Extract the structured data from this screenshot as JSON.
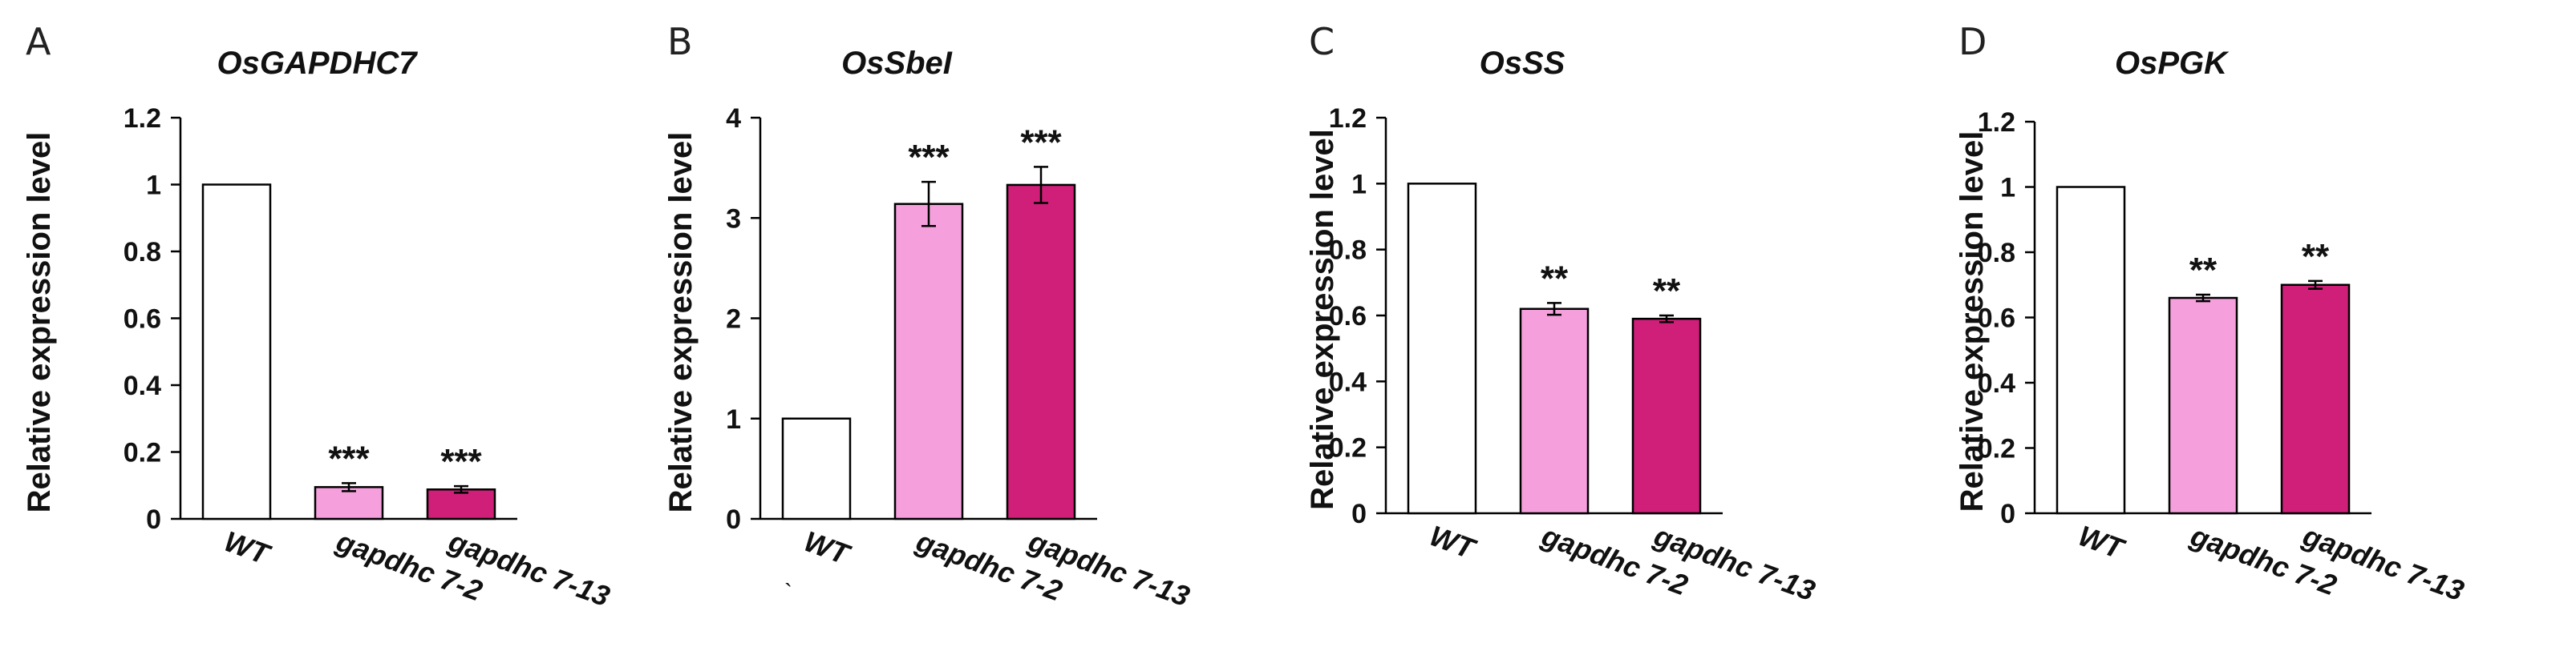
{
  "colors": {
    "wt_fill": "#ffffff",
    "line_7_2_fill": "#f5a0dd",
    "line_7_13_fill": "#cf1f79",
    "bar_stroke": "#000000",
    "axis": "#000000"
  },
  "chart_data": [
    {
      "panel": "A",
      "type": "bar",
      "title": "OsGAPDHC7",
      "ylabel": "Relative expression level",
      "xlabel": "",
      "categories": [
        "WT",
        "gapdhc 7-2",
        "gapdhc 7-13"
      ],
      "values": [
        1.0,
        0.095,
        0.088
      ],
      "errors": [
        0,
        0.012,
        0.01
      ],
      "significance": [
        "",
        "***",
        "***"
      ],
      "ylim": [
        0,
        1.2
      ],
      "yticks": [
        "0",
        "0.2",
        "0.4",
        "0.6",
        "0.8",
        "1",
        "1.2"
      ],
      "tick_values": [
        0,
        0.2,
        0.4,
        0.6,
        0.8,
        1.0,
        1.2
      ],
      "grid": false,
      "stray": ""
    },
    {
      "panel": "B",
      "type": "bar",
      "title": "OsSbeI",
      "ylabel": "Relative expression level",
      "xlabel": "",
      "categories": [
        "WT",
        "gapdhc 7-2",
        "gapdhc 7-13"
      ],
      "values": [
        1.0,
        3.14,
        3.33
      ],
      "errors": [
        0,
        0.22,
        0.18
      ],
      "significance": [
        "",
        "***",
        "***"
      ],
      "ylim": [
        0,
        4
      ],
      "yticks": [
        "0",
        "1",
        "2",
        "3",
        "4"
      ],
      "tick_values": [
        0,
        1,
        2,
        3,
        4
      ],
      "grid": false,
      "stray": "`"
    },
    {
      "panel": "C",
      "type": "bar",
      "title": "OsSS",
      "ylabel": "Relative expression level",
      "xlabel": "",
      "categories": [
        "WT",
        "gapdhc 7-2",
        "gapdhc 7-13"
      ],
      "values": [
        1.0,
        0.62,
        0.59
      ],
      "errors": [
        0,
        0.018,
        0.01
      ],
      "significance": [
        "",
        "**",
        "**"
      ],
      "ylim": [
        0,
        1.2
      ],
      "yticks": [
        "0",
        "0.2",
        "0.4",
        "0.6",
        "0.8",
        "1",
        "1.2"
      ],
      "tick_values": [
        0,
        0.2,
        0.4,
        0.6,
        0.8,
        1.0,
        1.2
      ],
      "grid": false,
      "stray": ""
    },
    {
      "panel": "D",
      "type": "bar",
      "title": "OsPGK",
      "ylabel": "Relative expression level",
      "xlabel": "",
      "categories": [
        "WT",
        "gapdhc 7-2",
        "gapdhc 7-13"
      ],
      "values": [
        1.0,
        0.66,
        0.7
      ],
      "errors": [
        0,
        0.01,
        0.012
      ],
      "significance": [
        "",
        "**",
        "**"
      ],
      "ylim": [
        0,
        1.2
      ],
      "yticks": [
        "0",
        "0.2",
        "0.4",
        "0.6",
        "0.8",
        "1",
        "1.2"
      ],
      "tick_values": [
        0,
        0.2,
        0.4,
        0.6,
        0.8,
        1.0,
        1.2
      ],
      "grid": false,
      "stray": ""
    }
  ]
}
